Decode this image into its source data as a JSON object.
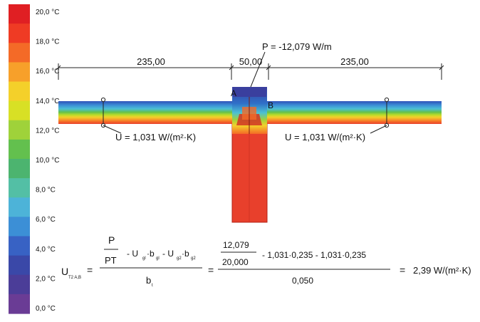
{
  "legend": {
    "labels": [
      "20,0 °C",
      "18,0 °C",
      "16,0 °C",
      "14,0 °C",
      "12,0 °C",
      "10,0 °C",
      "8,0 °C",
      "6,0 °C",
      "4,0 °C",
      "2,0 °C",
      "0,0 °C"
    ],
    "colors": [
      "#e01f23",
      "#ef3b24",
      "#f46a27",
      "#f7a02a",
      "#f4d02a",
      "#d8e025",
      "#9fd23a",
      "#63c04e",
      "#4cb46f",
      "#53bfa5",
      "#4db3d8",
      "#3c8fd6",
      "#3862c4",
      "#3a48a8",
      "#4b3d98",
      "#6a3c95"
    ]
  },
  "dimensions": {
    "left": "235,00",
    "middle": "50,00",
    "right": "235,00"
  },
  "heat_flow": "P = -12,079 W/m",
  "points": {
    "a": "A",
    "b": "B"
  },
  "u_left": "U = 1,031 W/(m²·K)",
  "u_right": "U = 1,031 W/(m²·K)",
  "formula": {
    "lhs_symbol": "U",
    "lhs_subscript": "T2 A,B",
    "eq1": "=",
    "frac1_num_top": "P",
    "frac1_num_bot": "PT",
    "frac1_terms": "- U",
    "frac1_denom": "b",
    "eq2": "=",
    "frac2_num_top": "12,079",
    "frac2_num_bot": "20,000",
    "frac2_terms": "- 1,031·0,235  -  1,031·0,235",
    "frac2_denom": "0,050",
    "eq3": "=",
    "result": "2,39 W/(m²·K)"
  },
  "colors": {
    "wall_hot": "#e8402c",
    "wall_edge": "#b32216",
    "cold_band": "#3a3f9e"
  }
}
